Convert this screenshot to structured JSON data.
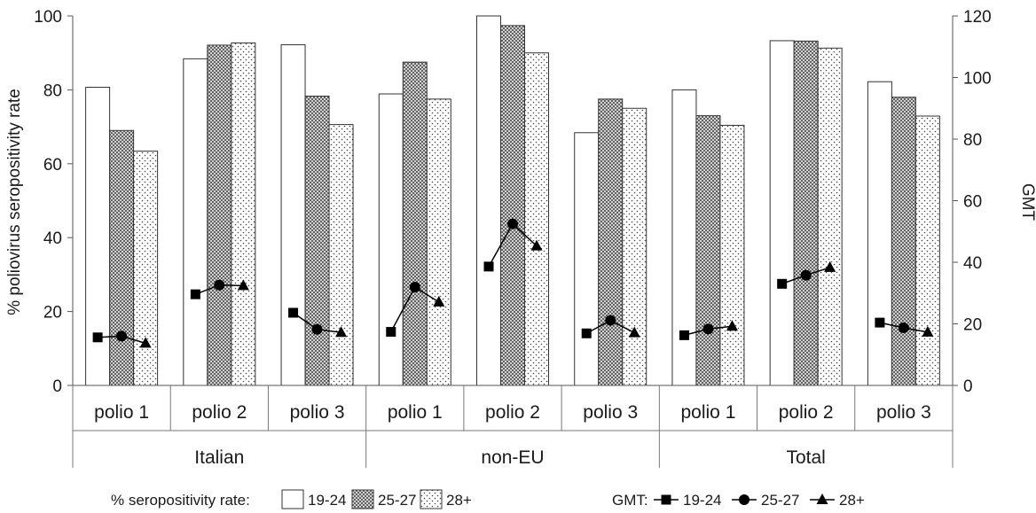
{
  "chart_data": {
    "type": "bar",
    "ylabel": "% poliovirus seropositivity rate",
    "y2label": "GMT",
    "ylim": [
      0,
      100
    ],
    "y2lim": [
      0,
      120
    ],
    "yticks": [
      "0",
      "20",
      "40",
      "60",
      "80",
      "100"
    ],
    "y2ticks": [
      "0",
      "20",
      "40",
      "60",
      "80",
      "100",
      "120"
    ],
    "groups": [
      {
        "label": "Italian",
        "categories": [
          "polio 1",
          "polio 2",
          "polio 3"
        ]
      },
      {
        "label": "non-EU",
        "categories": [
          "polio 1",
          "polio 2",
          "polio 3"
        ]
      },
      {
        "label": "Total",
        "categories": [
          "polio 1",
          "polio 2",
          "polio 3"
        ]
      }
    ],
    "bar_series": [
      {
        "name": "19-24",
        "pattern": "white",
        "values": [
          80.7,
          88.4,
          92.2,
          78.9,
          100,
          68.4,
          80,
          93.3,
          82.2
        ]
      },
      {
        "name": "25-27",
        "pattern": "crosshatch",
        "values": [
          69,
          92.1,
          78.3,
          87.5,
          97.4,
          77.5,
          73,
          93.2,
          78
        ]
      },
      {
        "name": "28+",
        "pattern": "dots",
        "values": [
          63.4,
          92.7,
          70.6,
          77.5,
          90,
          75,
          70.4,
          91.3,
          72.9
        ]
      }
    ],
    "line_series": [
      {
        "name": "19-24",
        "marker": "square",
        "values": [
          15.6,
          29.6,
          23.6,
          17.4,
          38.6,
          16.9,
          16.3,
          33.0,
          20.4
        ]
      },
      {
        "name": "25-27",
        "marker": "circle",
        "values": [
          16.0,
          32.6,
          18.2,
          31.9,
          52.5,
          21.1,
          18.3,
          35.8,
          18.7
        ]
      },
      {
        "name": "28+",
        "marker": "triangle",
        "values": [
          13.7,
          32.4,
          17.2,
          27.1,
          45.3,
          17.1,
          19.2,
          38.3,
          17.3
        ]
      }
    ],
    "legend": {
      "bars_title": "% seropositivity rate:",
      "lines_title": "GMT:",
      "placement": "bottom"
    }
  }
}
